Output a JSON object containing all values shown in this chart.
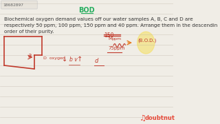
{
  "bg_color": "#f0ede6",
  "id_text": "18682897",
  "id_box_color": "#e8e4dc",
  "title_text": "BOD",
  "title_color": "#4a9a4a",
  "body_text_line1": "Biochemical oxygen demand values off our water samples A, B, C and D are",
  "body_text_line2": "respectively 50 ppm, 100 ppm, 150 ppm and 40 ppm. Arrange them in the descendin",
  "body_text_line3": "order of their purity.",
  "text_color": "#333333",
  "red_color": "#c0392b",
  "orange_color": "#e67e22",
  "green_color": "#27ae60",
  "doubnut_color": "#e74c3c",
  "line_color": "#b0a898"
}
